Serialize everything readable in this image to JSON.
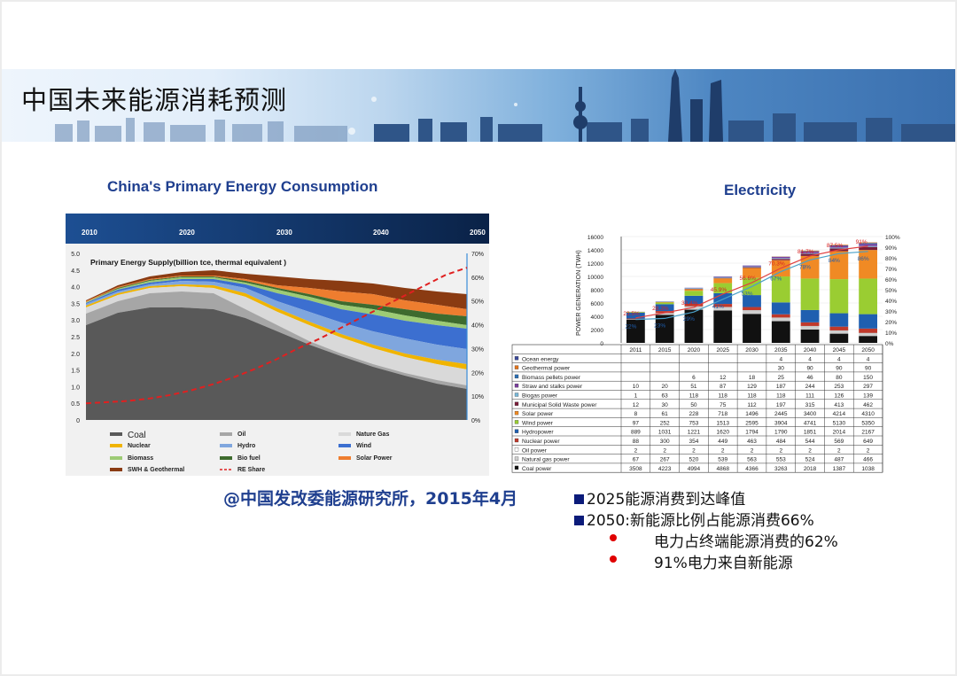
{
  "slide_title": "中国未来能源消耗预测",
  "left_chart": {
    "heading": "China's Primary Energy Consumption",
    "years": [
      "2010",
      "2020",
      "2030",
      "2040",
      "2050"
    ],
    "inner_title": "Primary Energy Supply(billion tce, thermal equivalent  )",
    "y_left": [
      "5.0",
      "4.5",
      "4.0",
      "3.5",
      "3.0",
      "2.5",
      "2.0",
      "1.5",
      "1.0",
      "0.5",
      "0"
    ],
    "y_right": [
      "70%",
      "60%",
      "50%",
      "40%",
      "30%",
      "20%",
      "10%",
      "0%"
    ],
    "legend": [
      "Coal",
      "Oil",
      "Nature Gas",
      "Nuclear",
      "Hydro",
      "Wind",
      "Biomass",
      "Bio fuel",
      "Solar Power",
      "SWH & Geothermal",
      "RE Share"
    ],
    "colors": {
      "coal": "#595959",
      "oil": "#a6a6a6",
      "gas": "#d9d9d9",
      "nuclear": "#f0b400",
      "hydro": "#7fa6de",
      "wind": "#3c6fd0",
      "biomass": "#9dcb75",
      "biofuel": "#3e6b2e",
      "solar": "#ee7d2f",
      "swh": "#8a3b12",
      "re": "#e02020"
    }
  },
  "right_chart": {
    "heading": "Electricity",
    "ylabel": "POWER GENERATION (TWH)",
    "y_left": [
      "16000",
      "14000",
      "12000",
      "10000",
      "8000",
      "6000",
      "4000",
      "2000",
      "0"
    ],
    "y_right": [
      "100%",
      "90%",
      "80%",
      "70%",
      "60%",
      "50%",
      "40%",
      "30%",
      "20%",
      "10%",
      "0%"
    ],
    "years": [
      "2011",
      "2015",
      "2020",
      "2025",
      "2030",
      "2035",
      "2040",
      "2045",
      "2050"
    ],
    "share_a": [
      "23.5%",
      "28.3%",
      "33.4%",
      "45.9%",
      "56.6%",
      "70.3%",
      "81.7%",
      "87.5%",
      "91%"
    ],
    "share_b": [
      "22%",
      "23%",
      "29%",
      "41%",
      "53%",
      "67%",
      "78%",
      "84%",
      "86%"
    ],
    "rows": [
      {
        "name": "Ocean energy",
        "color": "#3b4a9b",
        "v": [
          "",
          "",
          "",
          "",
          "",
          "4",
          "4",
          "4",
          "4"
        ]
      },
      {
        "name": "Geothermal power",
        "color": "#e3741b",
        "v": [
          "",
          "",
          "",
          "",
          "",
          "30",
          "90",
          "90",
          "90"
        ]
      },
      {
        "name": "Biomass pellets power",
        "color": "#2b6fb5",
        "v": [
          "",
          "",
          "6",
          "12",
          "18",
          "25",
          "46",
          "80",
          "150"
        ]
      },
      {
        "name": "Straw and stalks power",
        "color": "#7b3f9e",
        "v": [
          "10",
          "20",
          "51",
          "87",
          "129",
          "187",
          "244",
          "253",
          "297"
        ]
      },
      {
        "name": "Biogas power",
        "color": "#79b8d8",
        "v": [
          "1",
          "63",
          "118",
          "118",
          "118",
          "118",
          "111",
          "126",
          "139"
        ]
      },
      {
        "name": "Municipal Solid Waste power",
        "color": "#7a1e3a",
        "v": [
          "12",
          "30",
          "50",
          "75",
          "112",
          "197",
          "315",
          "413",
          "462"
        ]
      },
      {
        "name": "Solar power",
        "color": "#f08a24",
        "v": [
          "8",
          "61",
          "228",
          "718",
          "1496",
          "2445",
          "3400",
          "4214",
          "4310"
        ]
      },
      {
        "name": "Wind power",
        "color": "#9acd32",
        "v": [
          "97",
          "252",
          "753",
          "1513",
          "2595",
          "3904",
          "4741",
          "5130",
          "5350"
        ]
      },
      {
        "name": "Hydropower",
        "color": "#1f5fb0",
        "v": [
          "889",
          "1031",
          "1221",
          "1620",
          "1794",
          "1790",
          "1851",
          "2014",
          "2167"
        ]
      },
      {
        "name": "Nuclear power",
        "color": "#c0392b",
        "v": [
          "88",
          "300",
          "354",
          "449",
          "463",
          "484",
          "544",
          "569",
          "649"
        ]
      },
      {
        "name": "Oil power",
        "color": "#ffffff",
        "v": [
          "2",
          "2",
          "2",
          "2",
          "2",
          "2",
          "2",
          "2",
          "2"
        ]
      },
      {
        "name": "Natural gas power",
        "color": "#cfcfcf",
        "v": [
          "67",
          "267",
          "520",
          "539",
          "563",
          "553",
          "524",
          "487",
          "466"
        ]
      },
      {
        "name": "Coal power",
        "color": "#111111",
        "v": [
          "3508",
          "4223",
          "4994",
          "4868",
          "4366",
          "3263",
          "2018",
          "1387",
          "1038"
        ]
      }
    ]
  },
  "credit": "@中国发改委能源研究所，2015年4月",
  "bullets": [
    "2025能源消费到达峰值",
    "2050:新能源比例占能源消费66%"
  ],
  "sub_bullets": [
    "电力占终端能源消费的62%",
    "91%电力来自新能源"
  ]
}
